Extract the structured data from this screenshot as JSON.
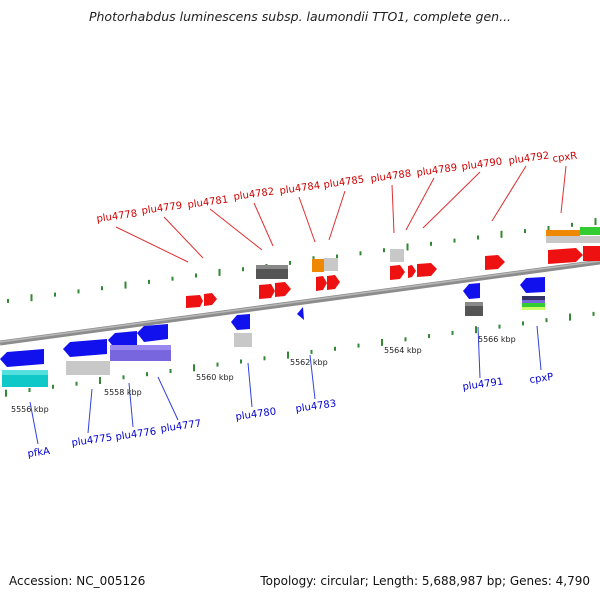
{
  "title": "Photorhabdus luminescens subsp. laumondii TTO1, complete gen...",
  "footer": {
    "accession": "Accession: NC_005126",
    "summary": "Topology: circular; Length: 5,688,987 bp; Genes: 4,790"
  },
  "colors": {
    "forward": "#ee1111",
    "reverse": "#1111ee",
    "axis": "#888888",
    "tick": "#338833",
    "label_forward": "#cc0000",
    "label_reverse": "#0000cc"
  },
  "scale_labels": [
    "5556 kbp",
    "5558 kbp",
    "5560 kbp",
    "5562 kbp",
    "5564 kbp",
    "5566 kbp"
  ],
  "forward_gene_labels": [
    "plu4778",
    "plu4779",
    "plu4781",
    "plu4782",
    "plu4784",
    "plu4785",
    "plu4788",
    "plu4789",
    "plu4790",
    "plu4792",
    "cpxR"
  ],
  "reverse_gene_labels": [
    "pfkA",
    "plu4775",
    "plu4776",
    "plu4777",
    "plu4780",
    "plu4783",
    "plu4791",
    "cpxP"
  ]
}
